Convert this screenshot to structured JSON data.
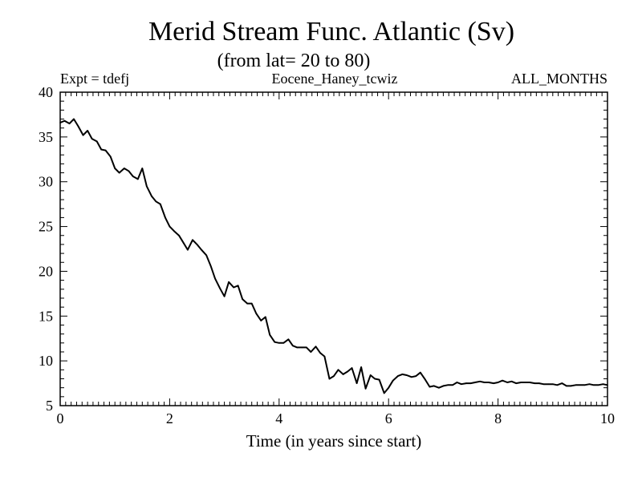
{
  "chart_data": {
    "type": "line",
    "title": "Merid Stream Func. Atlantic (Sv)",
    "subtitle": "(from lat= 20 to 80)",
    "header_left": "Expt = tdefj",
    "header_center": "Eocene_Haney_tcwiz",
    "header_right": "ALL_MONTHS",
    "xlabel": "Time (in years since start)",
    "ylabel": "",
    "xlim": [
      0,
      10
    ],
    "ylim": [
      5,
      40
    ],
    "x_ticks": [
      0,
      2,
      4,
      6,
      8,
      10
    ],
    "y_ticks": [
      5,
      10,
      15,
      20,
      25,
      30,
      35,
      40
    ],
    "x_minor_step": 0.1,
    "y_minor_step": 1,
    "grid": false,
    "series": [
      {
        "color": "#000000",
        "x": [
          0.0,
          0.08,
          0.17,
          0.25,
          0.33,
          0.42,
          0.5,
          0.58,
          0.67,
          0.75,
          0.83,
          0.92,
          1.0,
          1.08,
          1.17,
          1.25,
          1.33,
          1.42,
          1.5,
          1.58,
          1.67,
          1.75,
          1.83,
          1.92,
          2.0,
          2.08,
          2.17,
          2.25,
          2.33,
          2.42,
          2.5,
          2.58,
          2.67,
          2.75,
          2.83,
          2.92,
          3.0,
          3.08,
          3.17,
          3.25,
          3.33,
          3.42,
          3.5,
          3.58,
          3.67,
          3.75,
          3.83,
          3.92,
          4.0,
          4.08,
          4.17,
          4.25,
          4.33,
          4.42,
          4.5,
          4.58,
          4.67,
          4.75,
          4.83,
          4.92,
          5.0,
          5.08,
          5.17,
          5.25,
          5.33,
          5.42,
          5.5,
          5.58,
          5.67,
          5.75,
          5.83,
          5.92,
          6.0,
          6.08,
          6.17,
          6.25,
          6.33,
          6.42,
          6.5,
          6.58,
          6.67,
          6.75,
          6.83,
          6.92,
          7.0,
          7.08,
          7.17,
          7.25,
          7.33,
          7.42,
          7.5,
          7.58,
          7.67,
          7.75,
          7.83,
          7.92,
          8.0,
          8.08,
          8.17,
          8.25,
          8.33,
          8.42,
          8.5,
          8.58,
          8.67,
          8.75,
          8.83,
          8.92,
          9.0,
          9.08,
          9.17,
          9.25,
          9.33,
          9.42,
          9.5,
          9.58,
          9.67,
          9.75,
          9.83,
          9.92,
          10.0
        ],
        "y": [
          36.6,
          36.8,
          36.5,
          37.0,
          36.2,
          35.2,
          35.7,
          34.8,
          34.5,
          33.6,
          33.5,
          32.8,
          31.5,
          31.0,
          31.5,
          31.2,
          30.6,
          30.3,
          31.5,
          29.5,
          28.4,
          27.8,
          27.5,
          26.0,
          25.0,
          24.5,
          24.0,
          23.2,
          22.4,
          23.5,
          23.0,
          22.4,
          21.8,
          20.6,
          19.2,
          18.1,
          17.2,
          18.8,
          18.2,
          18.4,
          16.9,
          16.4,
          16.4,
          15.3,
          14.5,
          14.9,
          12.9,
          12.1,
          12.0,
          12.0,
          12.4,
          11.7,
          11.5,
          11.5,
          11.5,
          11.0,
          11.6,
          10.9,
          10.5,
          8.0,
          8.3,
          9.0,
          8.5,
          8.8,
          9.2,
          7.5,
          9.3,
          6.9,
          8.4,
          8.0,
          7.9,
          6.4,
          7.0,
          7.8,
          8.3,
          8.5,
          8.4,
          8.2,
          8.3,
          8.7,
          7.9,
          7.1,
          7.2,
          7.0,
          7.2,
          7.3,
          7.3,
          7.6,
          7.4,
          7.5,
          7.5,
          7.6,
          7.7,
          7.6,
          7.6,
          7.5,
          7.6,
          7.8,
          7.6,
          7.7,
          7.5,
          7.6,
          7.6,
          7.6,
          7.5,
          7.5,
          7.4,
          7.4,
          7.4,
          7.3,
          7.5,
          7.2,
          7.2,
          7.3,
          7.3,
          7.3,
          7.4,
          7.3,
          7.3,
          7.4,
          7.3
        ]
      }
    ]
  }
}
